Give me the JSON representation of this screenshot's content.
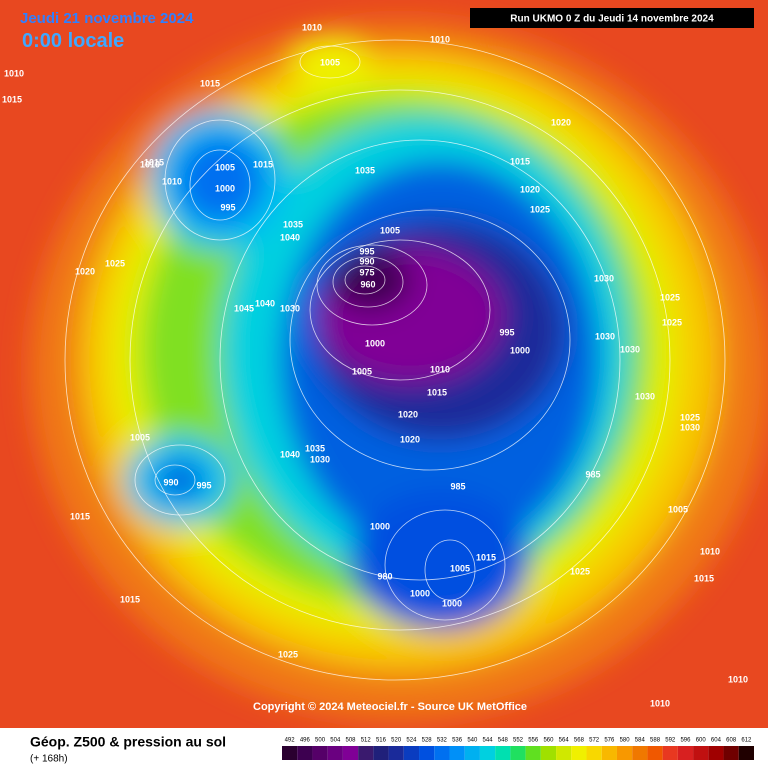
{
  "header": {
    "date": "Jeudi 21 novembre 2024",
    "time": "0:00 locale",
    "run": "Run UKMO 0 Z du Jeudi 14 novembre 2024"
  },
  "copyright": "Copyright © 2024 Meteociel.fr - Source UK MetOffice",
  "pressure_labels": [
    "1010",
    "1015",
    "1010",
    "1005",
    "1010",
    "1015",
    "1010",
    "1005",
    "1000",
    "995",
    "1015",
    "1010",
    "1015",
    "1035",
    "1035",
    "1040",
    "1045",
    "1040",
    "1030",
    "1005",
    "995",
    "990",
    "975",
    "960",
    "1000",
    "1005",
    "1010",
    "1015",
    "1020",
    "1020",
    "1025",
    "1020",
    "1015",
    "1020",
    "1025",
    "1020",
    "1030",
    "1025",
    "1030",
    "1025",
    "1030",
    "1030",
    "1025",
    "1030",
    "1035",
    "1040",
    "1030",
    "1000",
    "990",
    "995",
    "1005",
    "1015",
    "1000",
    "1000",
    "980",
    "985",
    "985",
    "1005",
    "1010",
    "1015",
    "1025",
    "1015",
    "1015",
    "1010",
    "1010",
    "1025",
    "995",
    "1000",
    "1005"
  ],
  "legend": {
    "title": "Géop. Z500 & pression au sol",
    "subtitle": "(+ 168h)",
    "levels": [
      492,
      496,
      500,
      504,
      508,
      512,
      516,
      520,
      524,
      528,
      532,
      536,
      540,
      544,
      548,
      552,
      556,
      560,
      564,
      568,
      572,
      576,
      580,
      584,
      588,
      592,
      596,
      600,
      604,
      608,
      612
    ],
    "colors": [
      "#2a0030",
      "#3d0050",
      "#550068",
      "#6a0080",
      "#800096",
      "#3a1a6e",
      "#20207a",
      "#1a2a9a",
      "#0a3cc0",
      "#0050e0",
      "#0070f0",
      "#0090f8",
      "#00b0f0",
      "#00d0e0",
      "#00e0b0",
      "#20e060",
      "#60e020",
      "#a0e000",
      "#d0e800",
      "#f0f000",
      "#f8d800",
      "#f8b800",
      "#f89800",
      "#f07800",
      "#f05800",
      "#e83820",
      "#d82020",
      "#c01010",
      "#a00000",
      "#700000",
      "#200000"
    ]
  }
}
